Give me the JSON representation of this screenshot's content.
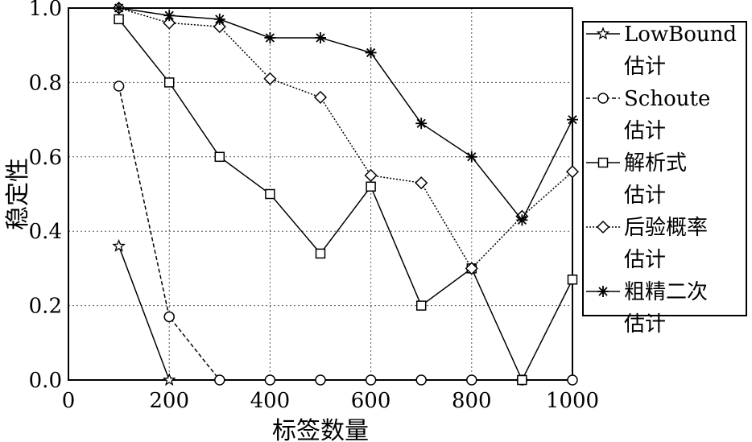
{
  "chart_data": {
    "type": "line",
    "title": "",
    "xlabel": "标签数量",
    "ylabel": "稳定性",
    "xlim": [
      0,
      1000
    ],
    "ylim": [
      0.0,
      1.0
    ],
    "x_ticks": [
      "0",
      "200",
      "400",
      "600",
      "800",
      "1000"
    ],
    "y_ticks": [
      "0.0",
      "0.2",
      "0.4",
      "0.6",
      "0.8",
      "1.0"
    ],
    "grid": true,
    "legend_position": "right",
    "series": [
      {
        "name": "LowBound估计",
        "legend_lines": [
          "LowBound",
          "估计"
        ],
        "marker": "star",
        "line_style": "solid",
        "x": [
          100,
          200
        ],
        "y": [
          0.36,
          0.0
        ]
      },
      {
        "name": "Schoute估计",
        "legend_lines": [
          "Schoute",
          "估计"
        ],
        "marker": "circle",
        "line_style": "dashed",
        "x": [
          100,
          200,
          300,
          400,
          500,
          600,
          700,
          800,
          900,
          1000
        ],
        "y": [
          0.79,
          0.17,
          0.0,
          0.0,
          0.0,
          0.0,
          0.0,
          0.0,
          0.0,
          0.0
        ]
      },
      {
        "name": "解析式估计",
        "legend_lines": [
          "解析式",
          "估计"
        ],
        "marker": "square",
        "line_style": "solid",
        "x": [
          100,
          200,
          300,
          400,
          500,
          600,
          700,
          800,
          900,
          1000
        ],
        "y": [
          0.97,
          0.8,
          0.6,
          0.5,
          0.34,
          0.52,
          0.2,
          0.3,
          0.0,
          0.27
        ]
      },
      {
        "name": "后验概率估计",
        "legend_lines": [
          "后验概率",
          "估计"
        ],
        "marker": "diamond",
        "line_style": "dotted",
        "x": [
          100,
          200,
          300,
          400,
          500,
          600,
          700,
          800,
          900,
          1000
        ],
        "y": [
          1.0,
          0.96,
          0.95,
          0.81,
          0.76,
          0.55,
          0.53,
          0.3,
          0.44,
          0.56
        ]
      },
      {
        "name": "粗精二次估计",
        "legend_lines": [
          "粗精二次",
          "估计"
        ],
        "marker": "asterisk",
        "line_style": "solid",
        "x": [
          100,
          200,
          300,
          400,
          500,
          600,
          700,
          800,
          900,
          1000
        ],
        "y": [
          1.0,
          0.98,
          0.97,
          0.92,
          0.92,
          0.88,
          0.69,
          0.6,
          0.43,
          0.7
        ]
      }
    ]
  }
}
